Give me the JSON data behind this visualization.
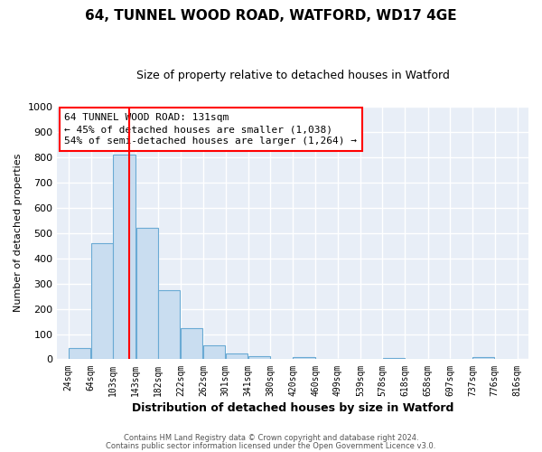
{
  "title": "64, TUNNEL WOOD ROAD, WATFORD, WD17 4GE",
  "subtitle": "Size of property relative to detached houses in Watford",
  "xlabel": "Distribution of detached houses by size in Watford",
  "ylabel": "Number of detached properties",
  "bar_left_edges": [
    24,
    64,
    103,
    143,
    182,
    222,
    262,
    301,
    341,
    380,
    420,
    460,
    499,
    539,
    578,
    618,
    658,
    697,
    737,
    776
  ],
  "bar_heights": [
    46,
    460,
    810,
    520,
    275,
    122,
    57,
    22,
    13,
    0,
    8,
    0,
    0,
    0,
    5,
    0,
    0,
    0,
    8,
    0
  ],
  "bin_width": 39,
  "tick_labels": [
    "24sqm",
    "64sqm",
    "103sqm",
    "143sqm",
    "182sqm",
    "222sqm",
    "262sqm",
    "301sqm",
    "341sqm",
    "380sqm",
    "420sqm",
    "460sqm",
    "499sqm",
    "539sqm",
    "578sqm",
    "618sqm",
    "658sqm",
    "697sqm",
    "737sqm",
    "776sqm",
    "816sqm"
  ],
  "tick_positions": [
    24,
    64,
    103,
    143,
    182,
    222,
    262,
    301,
    341,
    380,
    420,
    460,
    499,
    539,
    578,
    618,
    658,
    697,
    737,
    776,
    816
  ],
  "bar_color": "#c9ddf0",
  "bar_edge_color": "#6aaad4",
  "vline_x": 131,
  "vline_color": "red",
  "ylim": [
    0,
    1000
  ],
  "yticks": [
    0,
    100,
    200,
    300,
    400,
    500,
    600,
    700,
    800,
    900,
    1000
  ],
  "annotation_box_text": "64 TUNNEL WOOD ROAD: 131sqm\n← 45% of detached houses are smaller (1,038)\n54% of semi-detached houses are larger (1,264) →",
  "footer_line1": "Contains HM Land Registry data © Crown copyright and database right 2024.",
  "footer_line2": "Contains public sector information licensed under the Open Government Licence v3.0.",
  "background_color": "#ffffff",
  "plot_bg_color": "#e8eef7",
  "grid_color": "#ffffff",
  "title_fontsize": 11,
  "subtitle_fontsize": 9
}
